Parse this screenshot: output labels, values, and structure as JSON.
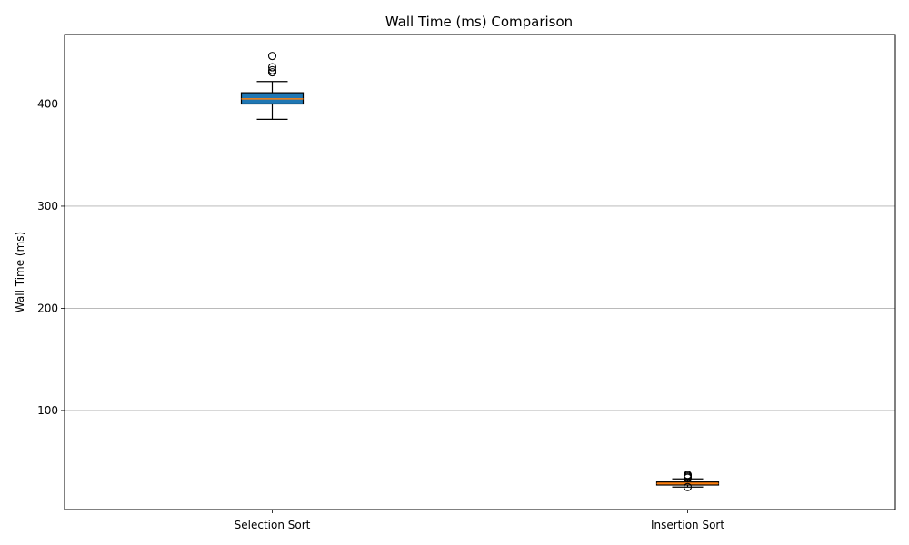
{
  "chart_data": {
    "type": "box",
    "title": "Wall Time (ms) Comparison",
    "xlabel": "",
    "ylabel": "Wall Time (ms)",
    "ylim": [
      3,
      468
    ],
    "yticks": [
      100,
      200,
      300,
      400
    ],
    "grid": "y",
    "categories": [
      "Selection Sort",
      "Insertion Sort"
    ],
    "boxes": [
      {
        "category": "Selection Sort",
        "whisker_low": 385,
        "q1": 400,
        "median": 405,
        "q3": 411,
        "whisker_high": 422,
        "outliers": [
          431,
          433,
          436,
          447
        ],
        "color": "#1f77b4"
      },
      {
        "category": "Insertion Sort",
        "whisker_low": 25,
        "q1": 27,
        "median": 28.5,
        "q3": 30,
        "whisker_high": 33,
        "outliers": [
          25,
          34,
          35,
          36,
          37
        ],
        "color": "#ff7f0e"
      }
    ],
    "median_color": "#ff7f0e"
  }
}
